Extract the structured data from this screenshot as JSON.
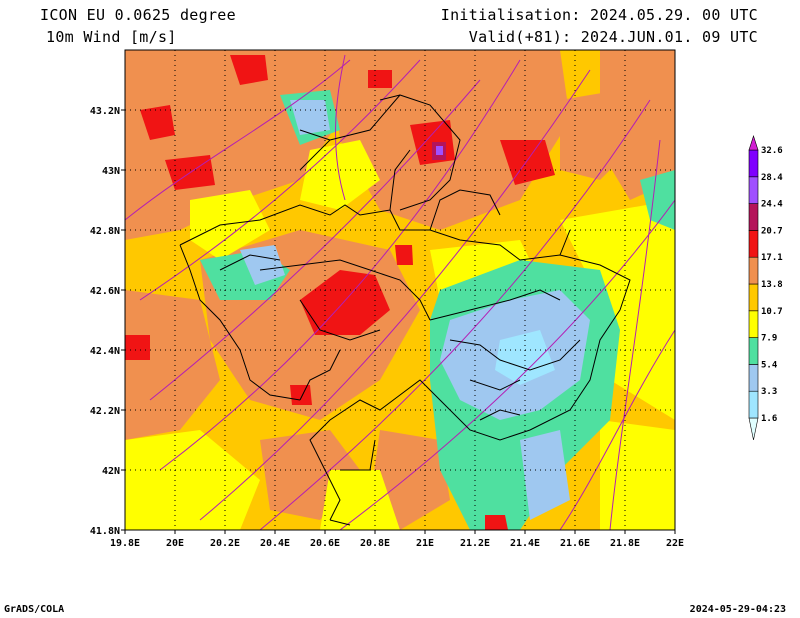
{
  "header": {
    "model": "ICON EU 0.0625 degree",
    "variable": "10m Wind [m/s]",
    "initialisation": "Initialisation: 2024.05.29. 00 UTC",
    "valid": "Valid(+81): 2024.JUN.01. 09 UTC"
  },
  "footer": {
    "software": "GrADS/COLA",
    "timestamp": "2024-05-29-04:23"
  },
  "map": {
    "lon_range": [
      19.8,
      22.0
    ],
    "lat_range": [
      41.8,
      43.4
    ],
    "lon_ticks": [
      "19.8E",
      "20E",
      "20.2E",
      "20.4E",
      "20.6E",
      "20.8E",
      "21E",
      "21.2E",
      "21.4E",
      "21.6E",
      "21.8E",
      "22E"
    ],
    "lat_ticks": [
      "41.8N",
      "42N",
      "42.2N",
      "42.4N",
      "42.6N",
      "42.8N",
      "43N",
      "43.2N"
    ],
    "gridlines": "dotted"
  },
  "colorbar": {
    "levels": [
      "1.6",
      "3.3",
      "5.4",
      "7.9",
      "10.7",
      "13.8",
      "17.1",
      "20.7",
      "24.4",
      "28.4",
      "32.6"
    ],
    "colors": [
      "#e0ffff",
      "#9fe6ff",
      "#9fc8f0",
      "#4fe0a0",
      "#ffff00",
      "#ffc800",
      "#f0904f",
      "#f01414",
      "#b4145a",
      "#a050ff",
      "#7f00ff",
      "#d21ed2"
    ]
  }
}
